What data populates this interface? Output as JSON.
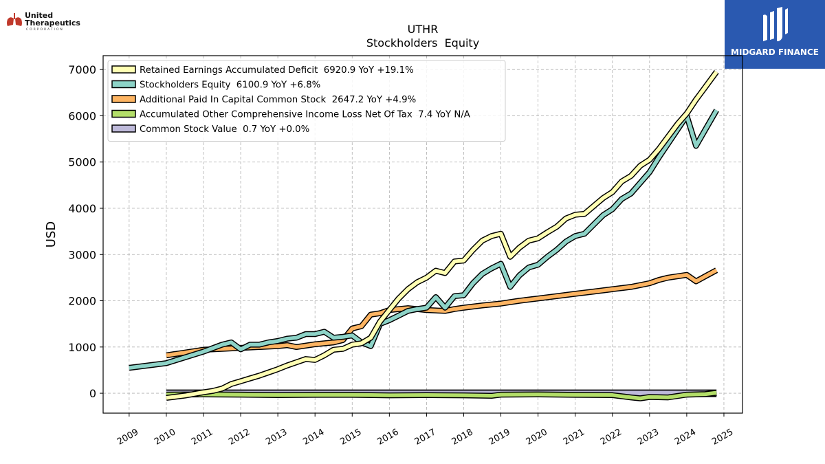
{
  "logos": {
    "left": {
      "line1": "United",
      "line2": "Therapeutics",
      "line3": "CORPORATION",
      "icon": "lungs-icon",
      "color": "#c0392b"
    },
    "right": {
      "brand": "MIDGARD FINANCE",
      "icon": "midgard-mark-icon",
      "background": "#2a59b0"
    }
  },
  "chart_data": {
    "type": "line",
    "title": "UTHR",
    "subtitle": "Stockholders  Equity",
    "ylabel": "USD",
    "xlabel": "",
    "xlim": [
      2008.3,
      2025.5
    ],
    "ylim": [
      -430,
      7300
    ],
    "xticks": [
      2009,
      2010,
      2011,
      2012,
      2013,
      2014,
      2015,
      2016,
      2017,
      2018,
      2019,
      2020,
      2021,
      2022,
      2023,
      2024,
      2025
    ],
    "yticks": [
      0,
      1000,
      2000,
      3000,
      4000,
      5000,
      6000,
      7000
    ],
    "grid": true,
    "legend_position": "top-left",
    "series": [
      {
        "name": "Retained Earnings Accumulated Deficit  6920.9 YoY +19.1%",
        "color": "#ffffb3",
        "points": [
          [
            2010.0,
            -100
          ],
          [
            2010.5,
            -50
          ],
          [
            2011.0,
            20
          ],
          [
            2011.25,
            50
          ],
          [
            2011.5,
            100
          ],
          [
            2011.75,
            200
          ],
          [
            2012.0,
            260
          ],
          [
            2012.25,
            320
          ],
          [
            2012.5,
            380
          ],
          [
            2012.75,
            450
          ],
          [
            2013.0,
            520
          ],
          [
            2013.25,
            600
          ],
          [
            2013.5,
            670
          ],
          [
            2013.75,
            740
          ],
          [
            2014.0,
            720
          ],
          [
            2014.25,
            820
          ],
          [
            2014.5,
            940
          ],
          [
            2014.75,
            960
          ],
          [
            2015.0,
            1050
          ],
          [
            2015.25,
            1080
          ],
          [
            2015.5,
            1200
          ],
          [
            2015.75,
            1550
          ],
          [
            2016.0,
            1800
          ],
          [
            2016.25,
            2050
          ],
          [
            2016.5,
            2250
          ],
          [
            2016.75,
            2400
          ],
          [
            2017.0,
            2500
          ],
          [
            2017.25,
            2650
          ],
          [
            2017.5,
            2600
          ],
          [
            2017.75,
            2850
          ],
          [
            2018.0,
            2870
          ],
          [
            2018.25,
            3100
          ],
          [
            2018.5,
            3300
          ],
          [
            2018.75,
            3400
          ],
          [
            2019.0,
            3450
          ],
          [
            2019.25,
            2950
          ],
          [
            2019.5,
            3150
          ],
          [
            2019.75,
            3300
          ],
          [
            2020.0,
            3350
          ],
          [
            2020.25,
            3480
          ],
          [
            2020.5,
            3600
          ],
          [
            2020.75,
            3780
          ],
          [
            2021.0,
            3860
          ],
          [
            2021.25,
            3880
          ],
          [
            2021.5,
            4050
          ],
          [
            2021.75,
            4220
          ],
          [
            2022.0,
            4350
          ],
          [
            2022.25,
            4580
          ],
          [
            2022.5,
            4700
          ],
          [
            2022.75,
            4920
          ],
          [
            2023.0,
            5050
          ],
          [
            2023.25,
            5280
          ],
          [
            2023.5,
            5550
          ],
          [
            2023.75,
            5820
          ],
          [
            2024.0,
            6050
          ],
          [
            2024.25,
            6350
          ],
          [
            2024.5,
            6620
          ],
          [
            2024.8,
            6950
          ]
        ]
      },
      {
        "name": "Stockholders Equity  6100.9 YoY +6.8%",
        "color": "#8dd3c7",
        "points": [
          [
            2009.0,
            550
          ],
          [
            2010.0,
            650
          ],
          [
            2011.0,
            900
          ],
          [
            2011.5,
            1050
          ],
          [
            2011.75,
            1100
          ],
          [
            2012.0,
            950
          ],
          [
            2012.25,
            1050
          ],
          [
            2012.5,
            1050
          ],
          [
            2012.75,
            1100
          ],
          [
            2013.0,
            1130
          ],
          [
            2013.25,
            1180
          ],
          [
            2013.5,
            1200
          ],
          [
            2013.75,
            1280
          ],
          [
            2014.0,
            1280
          ],
          [
            2014.25,
            1330
          ],
          [
            2014.5,
            1200
          ],
          [
            2014.75,
            1220
          ],
          [
            2015.0,
            1250
          ],
          [
            2015.25,
            1100
          ],
          [
            2015.5,
            1020
          ],
          [
            2015.75,
            1500
          ],
          [
            2016.0,
            1580
          ],
          [
            2016.25,
            1680
          ],
          [
            2016.5,
            1780
          ],
          [
            2016.75,
            1820
          ],
          [
            2017.0,
            1850
          ],
          [
            2017.25,
            2080
          ],
          [
            2017.5,
            1850
          ],
          [
            2017.75,
            2100
          ],
          [
            2018.0,
            2120
          ],
          [
            2018.25,
            2380
          ],
          [
            2018.5,
            2580
          ],
          [
            2018.75,
            2700
          ],
          [
            2019.0,
            2800
          ],
          [
            2019.25,
            2300
          ],
          [
            2019.5,
            2550
          ],
          [
            2019.75,
            2720
          ],
          [
            2020.0,
            2780
          ],
          [
            2020.25,
            2950
          ],
          [
            2020.5,
            3100
          ],
          [
            2020.75,
            3280
          ],
          [
            2021.0,
            3400
          ],
          [
            2021.25,
            3450
          ],
          [
            2021.5,
            3650
          ],
          [
            2021.75,
            3850
          ],
          [
            2022.0,
            3980
          ],
          [
            2022.25,
            4200
          ],
          [
            2022.5,
            4320
          ],
          [
            2022.75,
            4550
          ],
          [
            2023.0,
            4780
          ],
          [
            2023.25,
            5100
          ],
          [
            2023.5,
            5400
          ],
          [
            2023.75,
            5700
          ],
          [
            2024.0,
            6000
          ],
          [
            2024.25,
            5350
          ],
          [
            2024.5,
            5700
          ],
          [
            2024.8,
            6120
          ]
        ]
      },
      {
        "name": "Additional Paid In Capital Common Stock  2647.2 YoY +4.9%",
        "color": "#fdb462",
        "points": [
          [
            2010.0,
            820
          ],
          [
            2010.5,
            880
          ],
          [
            2011.0,
            940
          ],
          [
            2011.5,
            960
          ],
          [
            2012.0,
            980
          ],
          [
            2012.5,
            1000
          ],
          [
            2013.0,
            1020
          ],
          [
            2013.25,
            1040
          ],
          [
            2013.5,
            1000
          ],
          [
            2014.0,
            1060
          ],
          [
            2014.5,
            1100
          ],
          [
            2014.75,
            1150
          ],
          [
            2015.0,
            1400
          ],
          [
            2015.25,
            1450
          ],
          [
            2015.5,
            1700
          ],
          [
            2015.75,
            1730
          ],
          [
            2016.0,
            1800
          ],
          [
            2016.5,
            1840
          ],
          [
            2017.0,
            1800
          ],
          [
            2017.5,
            1780
          ],
          [
            2017.75,
            1820
          ],
          [
            2018.0,
            1850
          ],
          [
            2018.5,
            1900
          ],
          [
            2019.0,
            1940
          ],
          [
            2019.5,
            2000
          ],
          [
            2020.0,
            2050
          ],
          [
            2020.5,
            2100
          ],
          [
            2021.0,
            2150
          ],
          [
            2021.5,
            2200
          ],
          [
            2022.0,
            2250
          ],
          [
            2022.5,
            2300
          ],
          [
            2023.0,
            2380
          ],
          [
            2023.25,
            2450
          ],
          [
            2023.5,
            2500
          ],
          [
            2024.0,
            2560
          ],
          [
            2024.25,
            2420
          ],
          [
            2024.5,
            2530
          ],
          [
            2024.8,
            2660
          ]
        ]
      },
      {
        "name": "Accumulated Other Comprehensive Income Loss Net Of Tax  7.4 YoY N/A",
        "color": "#b3de69",
        "points": [
          [
            2010.0,
            -30
          ],
          [
            2011.0,
            -25
          ],
          [
            2012.0,
            -30
          ],
          [
            2013.0,
            -40
          ],
          [
            2014.0,
            -35
          ],
          [
            2015.0,
            -35
          ],
          [
            2016.0,
            -45
          ],
          [
            2017.0,
            -40
          ],
          [
            2018.0,
            -45
          ],
          [
            2018.75,
            -55
          ],
          [
            2019.0,
            -30
          ],
          [
            2020.0,
            -25
          ],
          [
            2021.0,
            -35
          ],
          [
            2022.0,
            -40
          ],
          [
            2022.5,
            -90
          ],
          [
            2022.75,
            -110
          ],
          [
            2023.0,
            -80
          ],
          [
            2023.5,
            -90
          ],
          [
            2024.0,
            -30
          ],
          [
            2024.5,
            -20
          ],
          [
            2024.8,
            10
          ]
        ]
      },
      {
        "name": "Common Stock Value  0.7 YoY +0.0%",
        "color": "#bebada",
        "points": [
          [
            2010.0,
            0
          ],
          [
            2024.8,
            0
          ]
        ]
      }
    ]
  }
}
